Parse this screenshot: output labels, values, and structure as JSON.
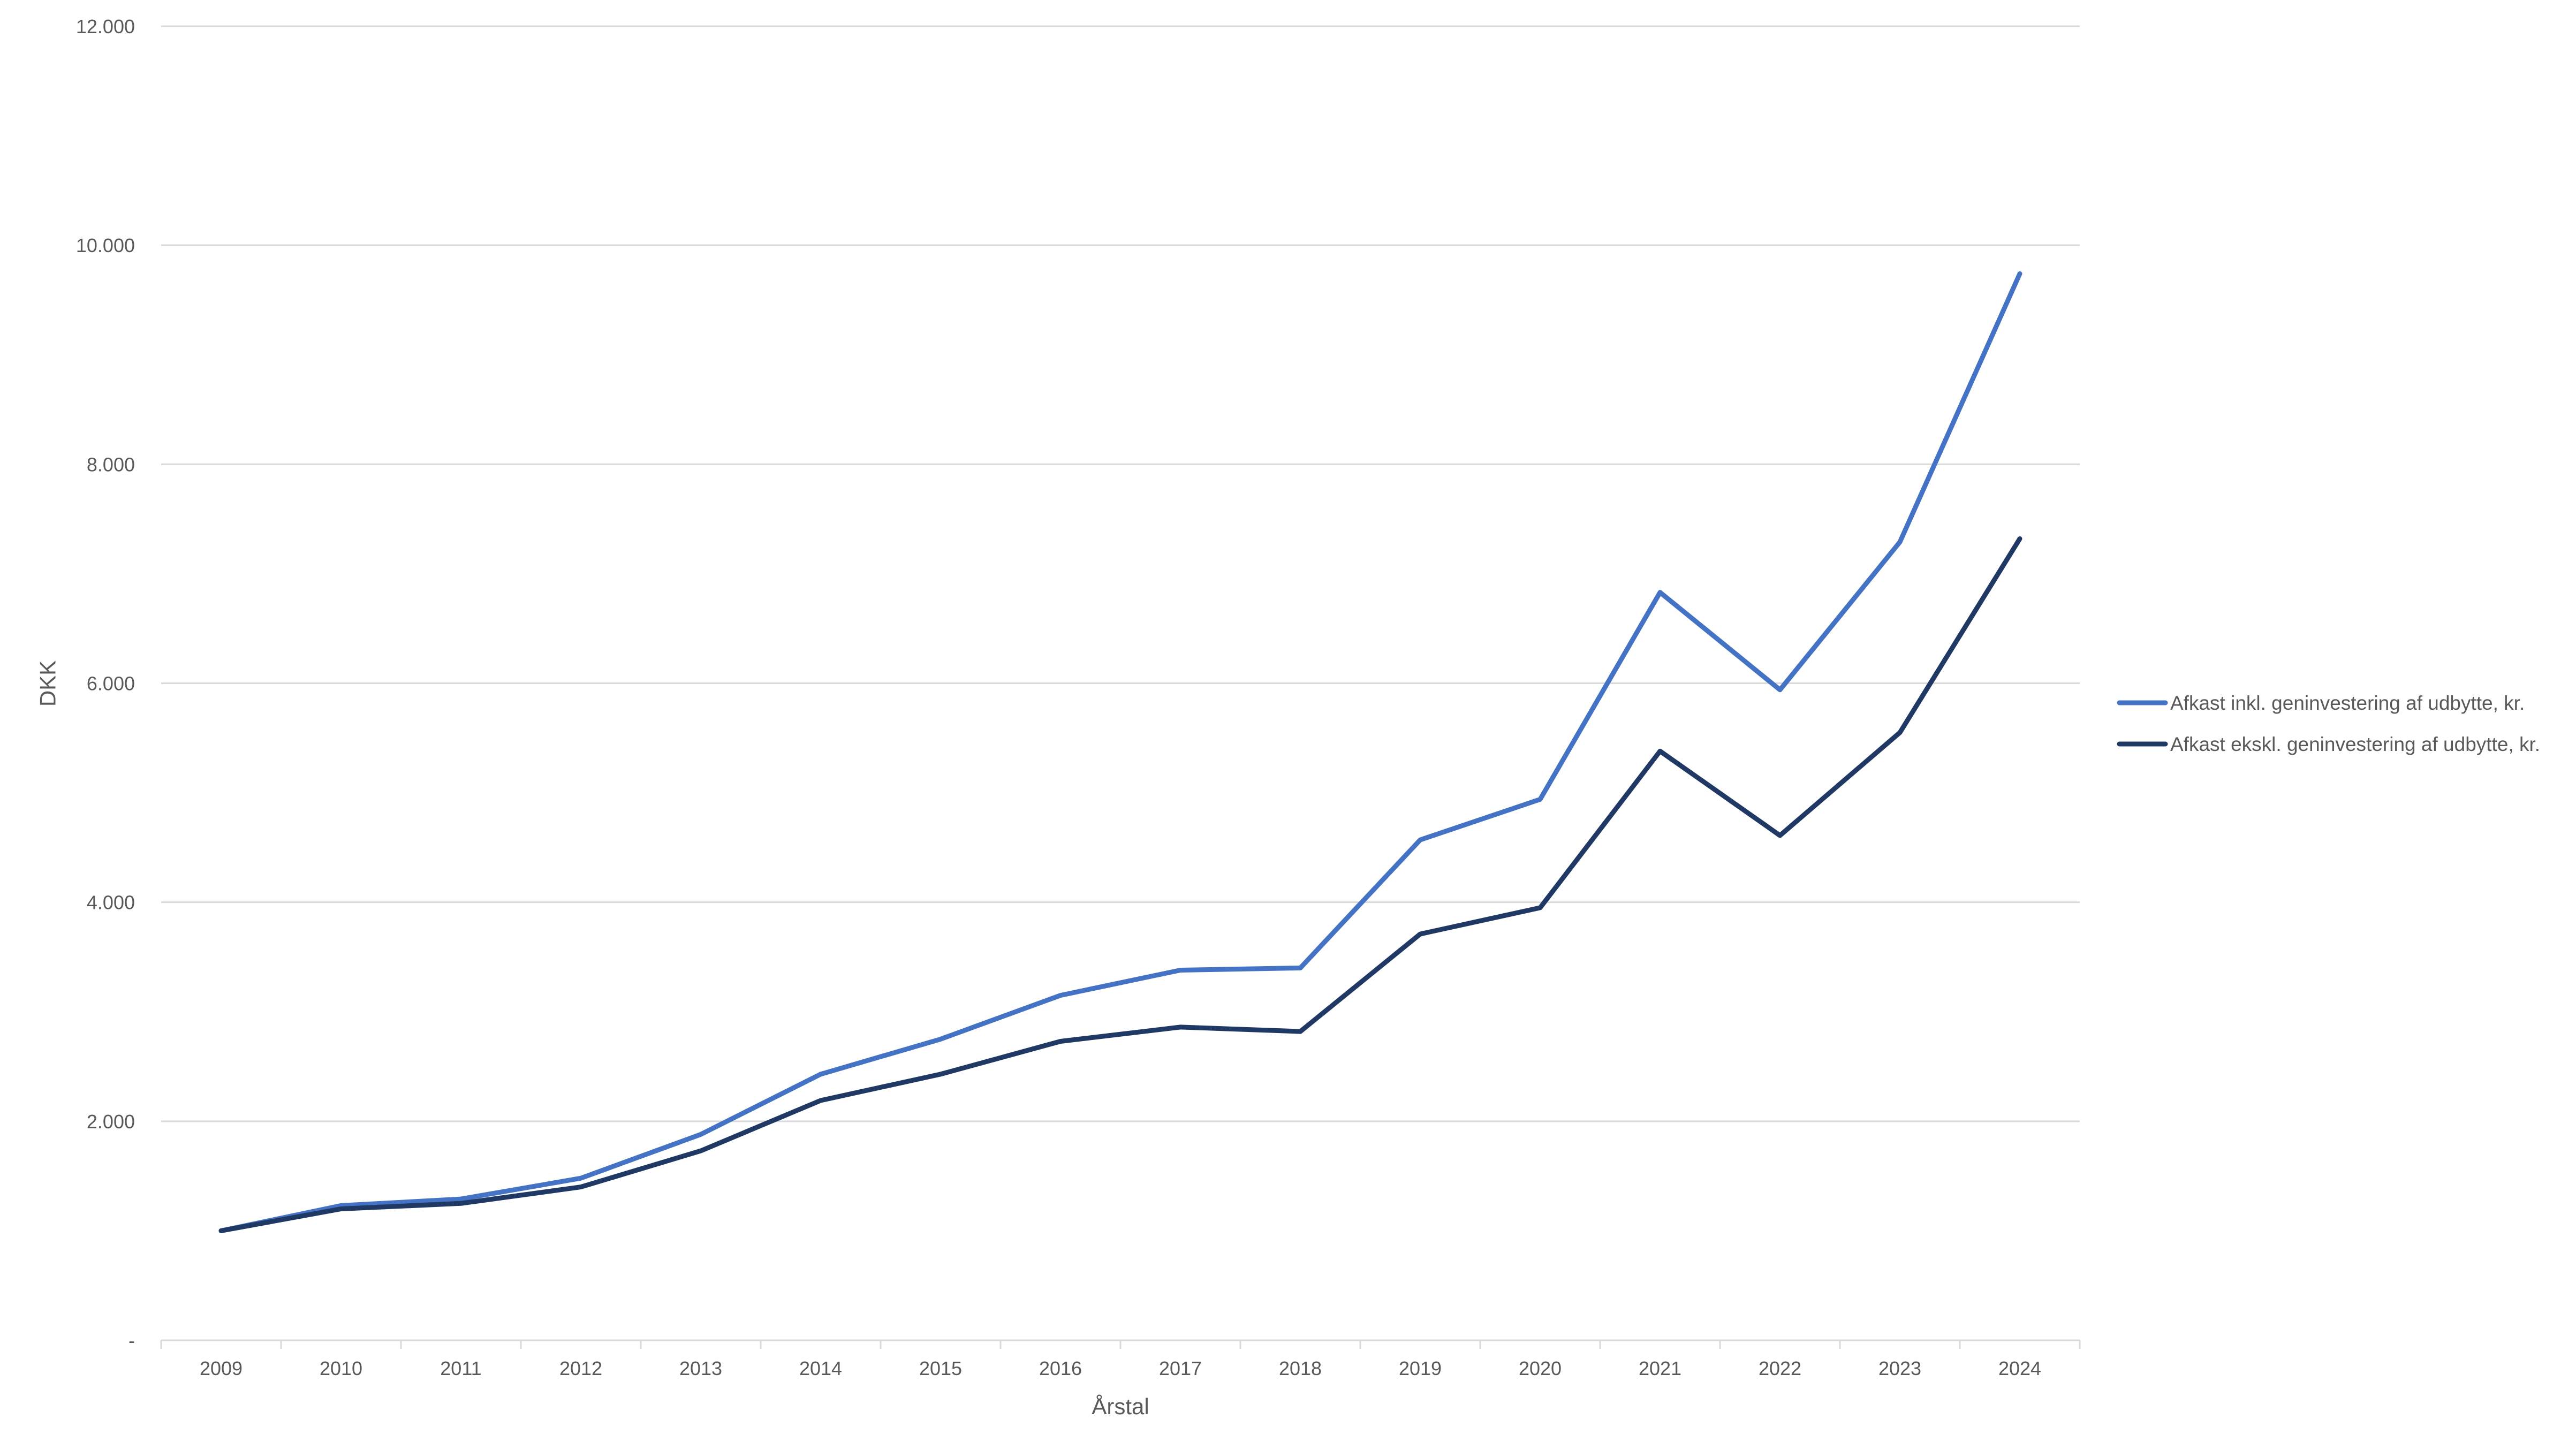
{
  "chart_data": {
    "type": "line",
    "categories": [
      "2009",
      "2010",
      "2011",
      "2012",
      "2013",
      "2014",
      "2015",
      "2016",
      "2017",
      "2018",
      "2019",
      "2020",
      "2021",
      "2022",
      "2023",
      "2024"
    ],
    "series": [
      {
        "name": "Afkast inkl. geninvestering af udbytte, kr.",
        "color": "#4472C4",
        "values": [
          1000,
          1230,
          1290,
          1480,
          1880,
          2430,
          2750,
          3150,
          3380,
          3400,
          4570,
          4940,
          6830,
          5940,
          7290,
          9740
        ]
      },
      {
        "name": "Afkast ekskl. geninvestering af udbytte, kr.",
        "color": "#1F3864",
        "values": [
          1000,
          1200,
          1250,
          1400,
          1730,
          2190,
          2430,
          2730,
          2860,
          2820,
          3710,
          3950,
          5380,
          4610,
          5550,
          7320
        ]
      }
    ],
    "xlabel": "Årstal",
    "ylabel": "DKK",
    "ylim": [
      0,
      12000
    ],
    "yticks": [
      0,
      2000,
      4000,
      6000,
      8000,
      10000,
      12000
    ],
    "ytick_labels": [
      "-",
      "2.000",
      "4.000",
      "6.000",
      "8.000",
      "10.000",
      "12.000"
    ],
    "grid": true,
    "grid_color": "#D9D9D9",
    "text_color": "#595959",
    "legend_position": "right"
  }
}
